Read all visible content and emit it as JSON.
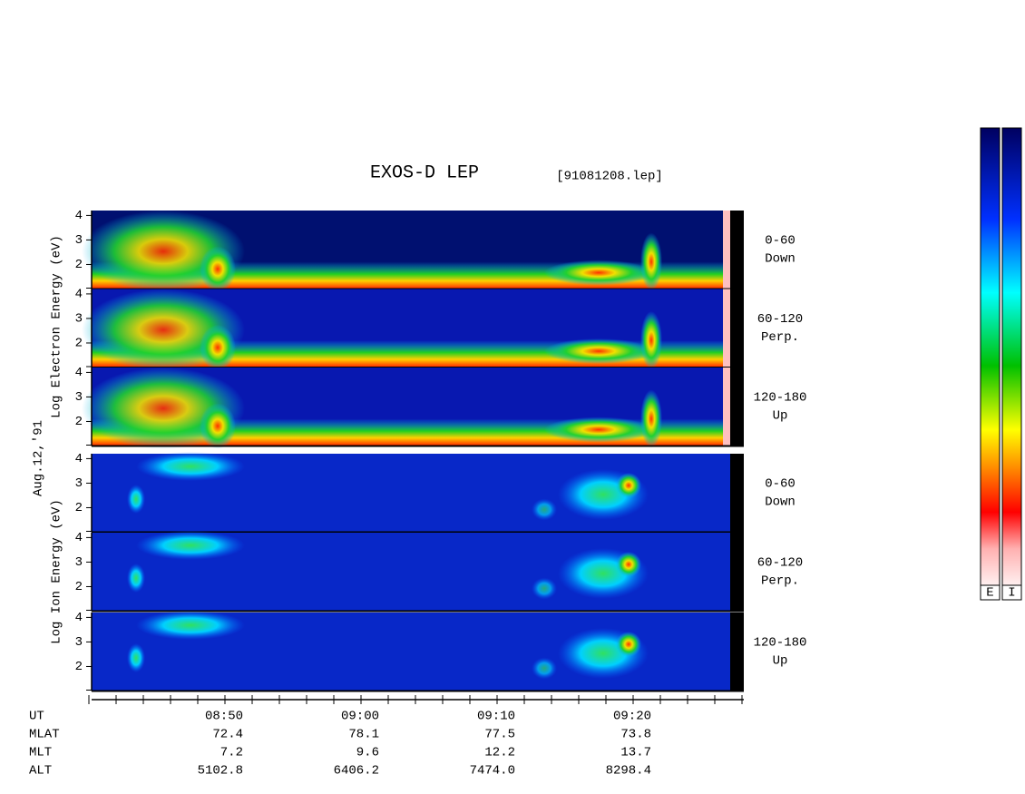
{
  "chart_data": {
    "type": "spectrogram",
    "title": "EXOS-D LEP",
    "file": "[91081208.lep]",
    "date": "Aug.12,'91",
    "ylim": [
      1,
      4.2
    ],
    "yticks": [
      2,
      3,
      4
    ],
    "groups": [
      {
        "label": "Log Electron Energy (eV)",
        "species": "electron",
        "panels": [
          {
            "range": "0-60",
            "dir": "Down"
          },
          {
            "range": "60-120",
            "dir": "Perp."
          },
          {
            "range": "120-180",
            "dir": "Up"
          }
        ]
      },
      {
        "label": "Log Ion Energy (eV)",
        "species": "ion",
        "panels": [
          {
            "range": "0-60",
            "dir": "Down"
          },
          {
            "range": "60-120",
            "dir": "Perp."
          },
          {
            "range": "120-180",
            "dir": "Up"
          }
        ]
      }
    ],
    "orbit": [
      {
        "name": "UT",
        "values": [
          "08:50",
          "09:00",
          "09:10",
          "09:20"
        ]
      },
      {
        "name": "MLAT",
        "values": [
          "72.4",
          "78.1",
          "77.5",
          "73.8"
        ]
      },
      {
        "name": "MLT",
        "values": [
          "7.2",
          "9.6",
          "12.2",
          "13.7"
        ]
      },
      {
        "name": "ALT",
        "values": [
          "5102.8",
          "6406.2",
          "7474.0",
          "8298.4"
        ]
      }
    ],
    "colorbars": [
      "E",
      "I"
    ]
  }
}
